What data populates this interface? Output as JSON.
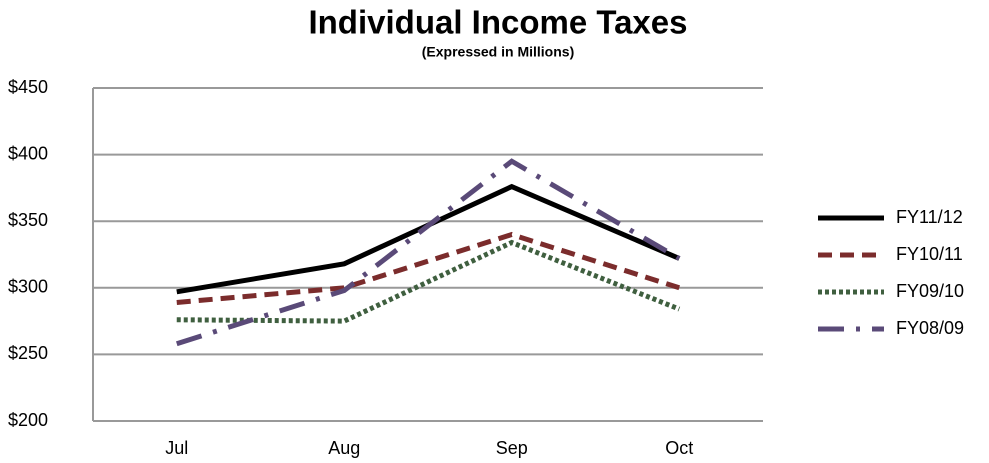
{
  "chart_data": {
    "type": "line",
    "title": "Individual Income Taxes",
    "subtitle": "(Expressed in Millions)",
    "categories": [
      "Jul",
      "Aug",
      "Sep",
      "Oct"
    ],
    "series": [
      {
        "name": "FY11/12",
        "color": "#000000",
        "dash": "solid",
        "values": [
          297,
          318,
          376,
          322
        ]
      },
      {
        "name": "FY10/11",
        "color": "#7b2c2c",
        "dash": "dashed",
        "values": [
          289,
          300,
          340,
          300
        ]
      },
      {
        "name": "FY09/10",
        "color": "#3f5f3f",
        "dash": "dotted",
        "values": [
          276,
          275,
          334,
          284
        ]
      },
      {
        "name": "FY08/09",
        "color": "#5a4a78",
        "dash": "dashdot",
        "values": [
          258,
          298,
          395,
          322
        ]
      }
    ],
    "ylim": [
      200,
      450
    ],
    "yticks": [
      {
        "value": 200,
        "label": "$200"
      },
      {
        "value": 250,
        "label": "$250"
      },
      {
        "value": 300,
        "label": "$300"
      },
      {
        "value": 350,
        "label": "$350"
      },
      {
        "value": 400,
        "label": "$400"
      },
      {
        "value": 450,
        "label": "$450"
      }
    ],
    "grid": true,
    "legend": "right"
  }
}
